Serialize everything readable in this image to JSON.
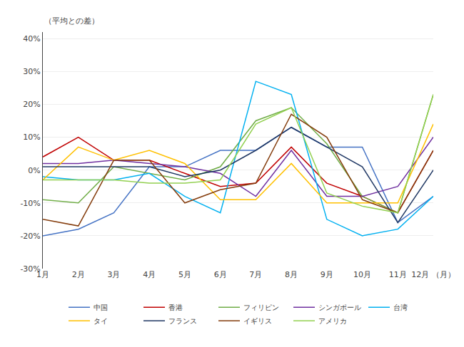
{
  "chart_data": {
    "type": "line",
    "ylabel": "（平均との差）",
    "categories": [
      "1月",
      "2月",
      "3月",
      "4月",
      "5月",
      "6月",
      "7月",
      "8月",
      "9月",
      "10月",
      "11月",
      "12月 （月）"
    ],
    "series": [
      {
        "name": "中国",
        "color": "#4472C4",
        "values": [
          -20,
          -18,
          -13,
          1,
          1,
          6,
          6,
          13,
          7,
          7,
          -16,
          -8
        ]
      },
      {
        "name": "香港",
        "color": "#C00000",
        "values": [
          4,
          10,
          3,
          3,
          -1,
          -5,
          -4,
          7,
          -4,
          -8,
          -13,
          6
        ]
      },
      {
        "name": "フィリピン",
        "color": "#70AD47",
        "values": [
          -9,
          -10,
          1,
          -1,
          -3,
          1,
          15,
          19,
          8,
          -8,
          -13,
          23
        ]
      },
      {
        "name": "シンガポール",
        "color": "#7030A0",
        "values": [
          2,
          2,
          3,
          2,
          1,
          -1,
          -8,
          6,
          -8,
          -8,
          -5,
          10
        ]
      },
      {
        "name": "台湾",
        "color": "#00B0F0",
        "values": [
          -2,
          -3,
          -3,
          -1,
          -8,
          -13,
          27,
          23,
          -15,
          -20,
          -18,
          -8
        ]
      },
      {
        "name": "タイ",
        "color": "#FFC000",
        "values": [
          -3,
          7,
          3,
          6,
          2,
          -9,
          -9,
          2,
          -10,
          -10,
          -10,
          14
        ]
      },
      {
        "name": "フランス",
        "color": "#203864",
        "values": [
          1,
          1,
          1,
          1,
          -2,
          0,
          6,
          13,
          7,
          1,
          -16,
          0
        ]
      },
      {
        "name": "イギリス",
        "color": "#843C0C",
        "values": [
          -15,
          -17,
          3,
          3,
          -10,
          -6,
          -4,
          17,
          10,
          -9,
          -13,
          6
        ]
      },
      {
        "name": "アメリカ",
        "color": "#92D050",
        "values": [
          -3,
          -3,
          -3,
          -4,
          -4,
          -3,
          14,
          19,
          -7,
          -11,
          -13,
          23
        ]
      }
    ],
    "ylim": [
      -30,
      42
    ],
    "yticks": [
      {
        "value": -30,
        "label": "-30%"
      },
      {
        "value": -20,
        "label": "-20%"
      },
      {
        "value": -10,
        "label": "-10%"
      },
      {
        "value": 0,
        "label": "0%"
      },
      {
        "value": 10,
        "label": "10%"
      },
      {
        "value": 20,
        "label": "20%"
      },
      {
        "value": 30,
        "label": "30%"
      },
      {
        "value": 40,
        "label": "40%"
      }
    ],
    "grid": true,
    "legend": "bottom"
  }
}
